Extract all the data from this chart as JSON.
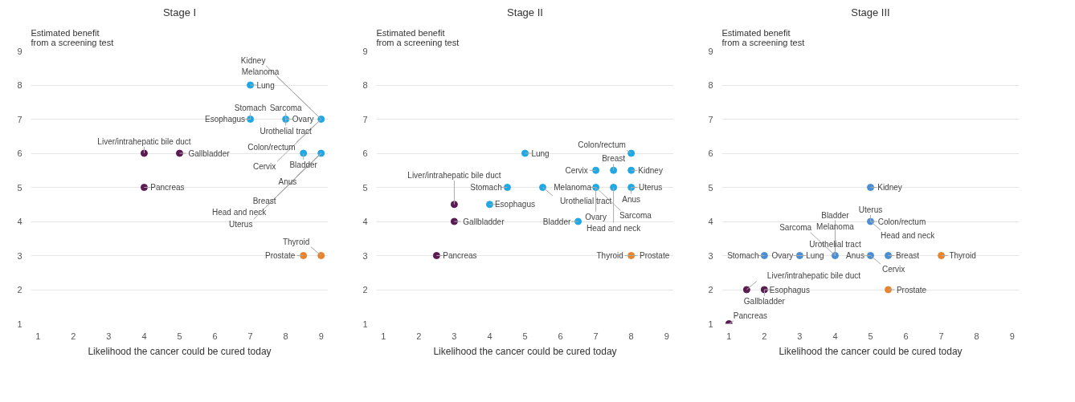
{
  "chart_data": [
    {
      "type": "scatter",
      "title": "Stage I",
      "xlabel": "Likelihood the cancer could be cured today",
      "ylabel": "Estimated benefit\nfrom a screening test",
      "xlim": [
        0.8,
        9.2
      ],
      "ylim": [
        1,
        9
      ],
      "xticks": [
        1,
        2,
        3,
        4,
        5,
        6,
        7,
        8,
        9
      ],
      "yticks": [
        1,
        2,
        3,
        4,
        5,
        6,
        7,
        8,
        9
      ],
      "grid": "y",
      "marker": "circle",
      "series": [
        {
          "color": "#5b1a52",
          "x": [
            4,
            5,
            4
          ],
          "values": [
            6,
            6,
            5
          ]
        },
        {
          "color": "#1fa8e6",
          "x": [
            7,
            7,
            8,
            9,
            8.5,
            9
          ],
          "values": [
            8,
            7,
            7,
            7,
            6,
            6
          ]
        },
        {
          "color": "#e8842c",
          "x": [
            8.5,
            9
          ],
          "values": [
            3,
            3
          ]
        }
      ],
      "annotations": [
        {
          "text": "Liver/intrahepatic bile duct",
          "x": 4,
          "y": 6
        },
        {
          "text": "Gallbladder",
          "x": 5,
          "y": 6
        },
        {
          "text": "Pancreas",
          "x": 4,
          "y": 5
        },
        {
          "text": "Lung",
          "x": 7,
          "y": 8
        },
        {
          "text": "Esophagus",
          "x": 7,
          "y": 7
        },
        {
          "text": "Stomach",
          "x": 7,
          "y": 7
        },
        {
          "text": "Urothelial tract",
          "x": 8,
          "y": 7
        },
        {
          "text": "Sarcoma",
          "x": 8,
          "y": 7
        },
        {
          "text": "Ovary",
          "x": 8,
          "y": 7
        },
        {
          "text": "Colon/rectum",
          "x": 9,
          "y": 7
        },
        {
          "text": "Melanoma",
          "x": 9,
          "y": 7
        },
        {
          "text": "Cervix",
          "x": 9,
          "y": 7
        },
        {
          "text": "Kidney",
          "x": 9,
          "y": 7
        },
        {
          "text": "Bladder",
          "x": 8.5,
          "y": 6
        },
        {
          "text": "Anus",
          "x": 9,
          "y": 6
        },
        {
          "text": "Breast",
          "x": 9,
          "y": 6
        },
        {
          "text": "Head and neck",
          "x": 9,
          "y": 6
        },
        {
          "text": "Uterus",
          "x": 9,
          "y": 6
        },
        {
          "text": "Prostate",
          "x": 8.5,
          "y": 3
        },
        {
          "text": "Thyroid",
          "x": 9,
          "y": 3
        }
      ]
    },
    {
      "type": "scatter",
      "title": "Stage II",
      "xlabel": "Likelihood the cancer could be cured today",
      "ylabel": "Estimated benefit\nfrom a screening test",
      "xlim": [
        0.8,
        9.2
      ],
      "ylim": [
        1,
        9
      ],
      "xticks": [
        1,
        2,
        3,
        4,
        5,
        6,
        7,
        8,
        9
      ],
      "yticks": [
        1,
        2,
        3,
        4,
        5,
        6,
        7,
        8,
        9
      ],
      "grid": "y",
      "marker": "circle",
      "series": [
        {
          "color": "#5b1a52",
          "x": [
            3,
            3,
            2.5
          ],
          "values": [
            4.5,
            4,
            3
          ]
        },
        {
          "color": "#1fa8e6",
          "x": [
            5,
            4.5,
            4,
            5.5,
            7,
            7.5,
            8,
            8,
            7,
            7.5,
            8,
            6.5
          ],
          "values": [
            6,
            5,
            4.5,
            5,
            5.5,
            5.5,
            6,
            5.5,
            5,
            5,
            5,
            4
          ]
        },
        {
          "color": "#e8842c",
          "x": [
            8
          ],
          "values": [
            3
          ]
        }
      ],
      "annotations": [
        {
          "text": "Liver/intrahepatic bile duct",
          "x": 3,
          "y": 4.5
        },
        {
          "text": "Gallbladder",
          "x": 3,
          "y": 4
        },
        {
          "text": "Pancreas",
          "x": 2.5,
          "y": 3
        },
        {
          "text": "Lung",
          "x": 5,
          "y": 6
        },
        {
          "text": "Stomach",
          "x": 4.5,
          "y": 5
        },
        {
          "text": "Esophagus",
          "x": 4,
          "y": 4.5
        },
        {
          "text": "Urothelial tract",
          "x": 5.5,
          "y": 5
        },
        {
          "text": "Cervix",
          "x": 7,
          "y": 5.5
        },
        {
          "text": "Breast",
          "x": 7.5,
          "y": 5.5
        },
        {
          "text": "Colon/rectum",
          "x": 8,
          "y": 6
        },
        {
          "text": "Kidney",
          "x": 8,
          "y": 5.5
        },
        {
          "text": "Uterus",
          "x": 8,
          "y": 5
        },
        {
          "text": "Anus",
          "x": 8,
          "y": 5
        },
        {
          "text": "Melanoma",
          "x": 7,
          "y": 5
        },
        {
          "text": "Ovary",
          "x": 7,
          "y": 5
        },
        {
          "text": "Sarcoma",
          "x": 7,
          "y": 5
        },
        {
          "text": "Head and neck",
          "x": 7.5,
          "y": 5
        },
        {
          "text": "Bladder",
          "x": 6.5,
          "y": 4
        },
        {
          "text": "Prostate",
          "x": 8,
          "y": 3
        },
        {
          "text": "Thyroid",
          "x": 8,
          "y": 3
        }
      ]
    },
    {
      "type": "scatter",
      "title": "Stage III",
      "xlabel": "Likelihood the cancer could be cured today",
      "ylabel": "Estimated benefit\nfrom a screening test",
      "xlim": [
        0.8,
        9.2
      ],
      "ylim": [
        1,
        9
      ],
      "xticks": [
        1,
        2,
        3,
        4,
        5,
        6,
        7,
        8,
        9
      ],
      "yticks": [
        1,
        2,
        3,
        4,
        5,
        6,
        7,
        8,
        9
      ],
      "grid": "y",
      "marker": "circle",
      "series": [
        {
          "color": "#5b1a52",
          "x": [
            1.5,
            2,
            1
          ],
          "values": [
            2,
            2,
            1
          ]
        },
        {
          "color": "#4a8fd6",
          "x": [
            2,
            3,
            4,
            5,
            5,
            5,
            5.5
          ],
          "values": [
            3,
            3,
            3,
            5,
            4,
            3,
            3
          ]
        },
        {
          "color": "#e8842c",
          "x": [
            7,
            5.5
          ],
          "values": [
            3,
            2
          ]
        }
      ],
      "annotations": [
        {
          "text": "Liver/intrahepatic bile duct",
          "x": 1.5,
          "y": 2
        },
        {
          "text": "Esophagus",
          "x": 2,
          "y": 2
        },
        {
          "text": "Gallbladder",
          "x": 2,
          "y": 2
        },
        {
          "text": "Pancreas",
          "x": 1,
          "y": 1
        },
        {
          "text": "Stomach",
          "x": 2,
          "y": 3
        },
        {
          "text": "Lung",
          "x": 3,
          "y": 3
        },
        {
          "text": "Ovary",
          "x": 3,
          "y": 3
        },
        {
          "text": "Urothelial tract",
          "x": 4,
          "y": 3
        },
        {
          "text": "Melanoma",
          "x": 4,
          "y": 3
        },
        {
          "text": "Sarcoma",
          "x": 4,
          "y": 3
        },
        {
          "text": "Bladder",
          "x": 4,
          "y": 3
        },
        {
          "text": "Kidney",
          "x": 5,
          "y": 5
        },
        {
          "text": "Colon/rectum",
          "x": 5,
          "y": 4
        },
        {
          "text": "Uterus",
          "x": 5,
          "y": 4
        },
        {
          "text": "Head and neck",
          "x": 5,
          "y": 4
        },
        {
          "text": "Anus",
          "x": 5,
          "y": 3
        },
        {
          "text": "Cervix",
          "x": 5,
          "y": 3
        },
        {
          "text": "Breast",
          "x": 5.5,
          "y": 3
        },
        {
          "text": "Thyroid",
          "x": 7,
          "y": 3
        },
        {
          "text": "Prostate",
          "x": 5.5,
          "y": 2
        }
      ]
    }
  ]
}
